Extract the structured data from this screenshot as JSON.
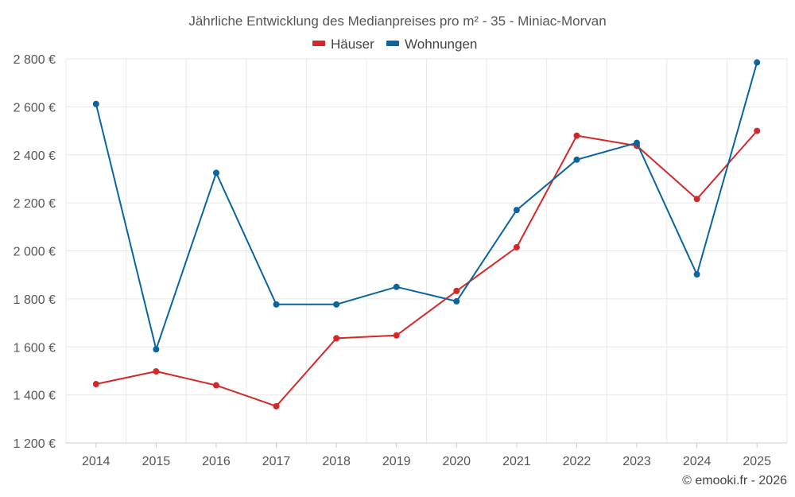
{
  "chart_data": {
    "type": "line",
    "title": "Jährliche Entwicklung des Medianpreises pro m² - 35 - Miniac-Morvan",
    "xlabel": "",
    "ylabel": "",
    "categories": [
      "2014",
      "2015",
      "2016",
      "2017",
      "2018",
      "2019",
      "2020",
      "2021",
      "2022",
      "2023",
      "2024",
      "2025"
    ],
    "ylim": [
      1200,
      2800
    ],
    "yticks": [
      1200,
      1400,
      1600,
      1800,
      2000,
      2200,
      2400,
      2600,
      2800
    ],
    "ytick_labels": [
      "1 200 €",
      "1 400 €",
      "1 600 €",
      "1 800 €",
      "2 000 €",
      "2 200 €",
      "2 400 €",
      "2 600 €",
      "2 800 €"
    ],
    "grid": true,
    "legend_position": "top-center",
    "series": [
      {
        "name": "Häuser",
        "color": "#d62728",
        "values": [
          1445,
          1498,
          1440,
          1353,
          1636,
          1648,
          1833,
          2015,
          2480,
          2438,
          2216,
          2500
        ]
      },
      {
        "name": "Wohnungen",
        "color": "#0a64a0",
        "values": [
          2612,
          1590,
          2325,
          1777,
          1777,
          1850,
          1790,
          2170,
          2380,
          2450,
          1902,
          2785
        ]
      }
    ]
  },
  "credit": "© emooki.fr - 2026"
}
